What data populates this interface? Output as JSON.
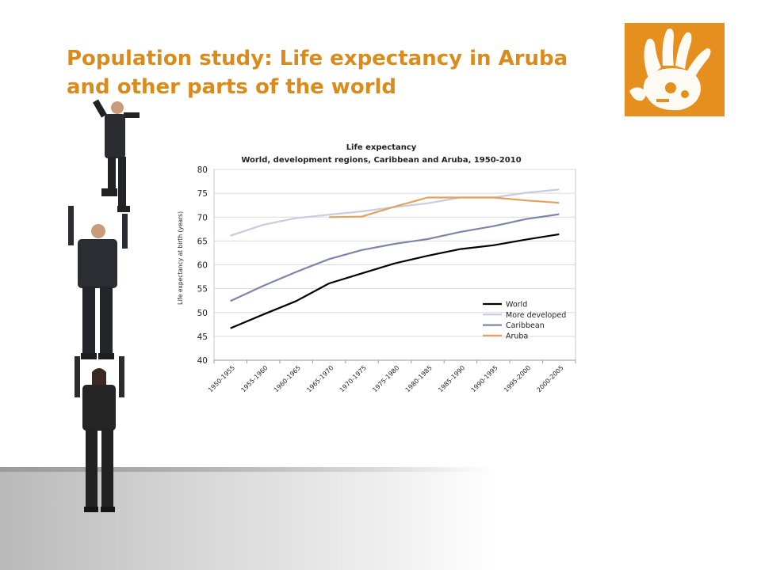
{
  "slide": {
    "title_line1": "Population study: Life expectancy in Aruba",
    "title_line2": "and other parts of the world",
    "title_color": "#d98b1c",
    "logo_color": "#e5901e",
    "logo_icon": "hand-print-icon",
    "illustration": "stacked-businesspeople-illustration"
  },
  "chart_data": {
    "type": "line",
    "title": "Life expectancy",
    "subtitle": "World, development regions, Caribbean and Aruba, 1950-2010",
    "xlabel": "",
    "ylabel": "Life expectancy at birth (years)",
    "ylim": [
      40,
      80
    ],
    "yticks": [
      40,
      45,
      50,
      55,
      60,
      65,
      70,
      75,
      80
    ],
    "grid": true,
    "legend_position": "bottom-right",
    "categories": [
      "1950-1955",
      "1955-1960",
      "1960-1965",
      "1965-1970",
      "1970-1975",
      "1975-1980",
      "1980-1985",
      "1985-1990",
      "1990-1995",
      "1995-2000",
      "2000-2005"
    ],
    "series": [
      {
        "name": "World",
        "color": "#000000",
        "values": [
          46.7,
          49.6,
          52.4,
          56.1,
          58.2,
          60.3,
          61.9,
          63.3,
          64.1,
          65.3,
          66.4
        ]
      },
      {
        "name": "More developed",
        "color": "#c9cce0",
        "values": [
          66.1,
          68.4,
          69.8,
          70.5,
          71.2,
          72.1,
          72.9,
          74.1,
          74.1,
          75.1,
          75.8
        ]
      },
      {
        "name": "Caribbean",
        "color": "#7c85ab",
        "values": [
          52.4,
          55.6,
          58.5,
          61.2,
          63.1,
          64.4,
          65.4,
          66.9,
          68.1,
          69.6,
          70.6
        ]
      },
      {
        "name": "Aruba",
        "color": "#e3a25a",
        "values": [
          null,
          null,
          null,
          70.0,
          70.1,
          72.2,
          74.1,
          74.1,
          74.1,
          73.5,
          73.0
        ]
      }
    ]
  }
}
